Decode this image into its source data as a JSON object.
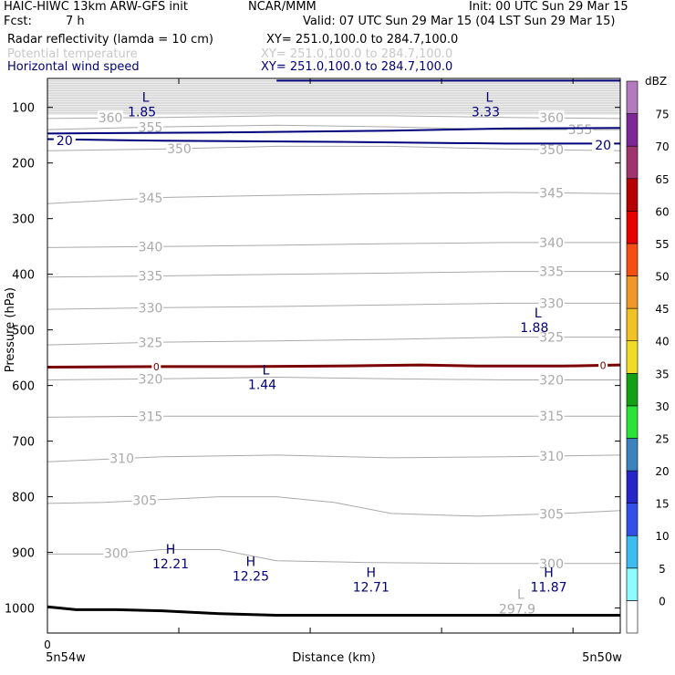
{
  "header": {
    "model": "HAIC-HIWC 13km ARW-GFS init",
    "org": "NCAR/MMM",
    "init": "Init: 00 UTC Sun 29 Mar 15",
    "fcst_label": "Fcst:",
    "fcst_value": "7 h",
    "valid": "Valid: 07 UTC Sun 29 Mar 15 (04 LST Sun 29 Mar 15)",
    "fields": [
      {
        "name": "Radar reflectivity (lamda = 10 cm)",
        "xy": "XY= 251.0,100.0 to 284.7,100.0",
        "color": "#000000"
      },
      {
        "name": "Potential temperature",
        "xy": "XY= 251.0,100.0 to 284.7,100.0",
        "color": "#c8c8c8"
      },
      {
        "name": "Horizontal wind speed",
        "xy": "XY= 251.0,100.0 to 284.7,100.0",
        "color": "#00007a"
      }
    ]
  },
  "colors": {
    "theta": "#aaaaaa",
    "wind": "#00007a",
    "freezing": "#7a0000",
    "terrain": "#000000"
  },
  "chart_data": {
    "type": "line",
    "ylabel": "Pressure (hPa)",
    "xlabel": "Distance (km)",
    "x_left_label": "5n54w",
    "x_right_label": "5n50w",
    "x_zero_label": "0",
    "yticks": [
      100,
      200,
      300,
      400,
      500,
      600,
      700,
      800,
      900,
      1000
    ],
    "ylim": [
      1045,
      48
    ],
    "xlim": [
      0,
      100
    ],
    "theta_contours": [
      {
        "label": "300",
        "points": [
          [
            0,
            903
          ],
          [
            10,
            903
          ],
          [
            20,
            895
          ],
          [
            30,
            895
          ],
          [
            35,
            905
          ],
          [
            40,
            915
          ],
          [
            55,
            918
          ],
          [
            75,
            920
          ],
          [
            90,
            920
          ],
          [
            100,
            920
          ]
        ],
        "labels_at": [
          12,
          88
        ]
      },
      {
        "label": "305",
        "points": [
          [
            0,
            812
          ],
          [
            10,
            810
          ],
          [
            20,
            805
          ],
          [
            30,
            800
          ],
          [
            40,
            800
          ],
          [
            50,
            810
          ],
          [
            60,
            830
          ],
          [
            75,
            835
          ],
          [
            90,
            830
          ],
          [
            100,
            825
          ]
        ],
        "labels_at": [
          17,
          88
        ]
      },
      {
        "label": "310",
        "points": [
          [
            0,
            737
          ],
          [
            20,
            728
          ],
          [
            40,
            725
          ],
          [
            60,
            730
          ],
          [
            80,
            728
          ],
          [
            100,
            725
          ]
        ],
        "labels_at": [
          13,
          88
        ]
      },
      {
        "label": "315",
        "points": [
          [
            0,
            657
          ],
          [
            20,
            655
          ],
          [
            40,
            655
          ],
          [
            60,
            655
          ],
          [
            80,
            655
          ],
          [
            100,
            655
          ]
        ],
        "labels_at": [
          18,
          88
        ]
      },
      {
        "label": "320",
        "points": [
          [
            0,
            590
          ],
          [
            20,
            588
          ],
          [
            40,
            585
          ],
          [
            60,
            588
          ],
          [
            80,
            590
          ],
          [
            100,
            590
          ]
        ],
        "labels_at": [
          18,
          88
        ]
      },
      {
        "label": "325",
        "points": [
          [
            0,
            527
          ],
          [
            20,
            522
          ],
          [
            40,
            520
          ],
          [
            60,
            517
          ],
          [
            80,
            513
          ],
          [
            100,
            513
          ]
        ],
        "labels_at": [
          18,
          88
        ]
      },
      {
        "label": "330",
        "points": [
          [
            0,
            463
          ],
          [
            20,
            460
          ],
          [
            40,
            458
          ],
          [
            60,
            455
          ],
          [
            80,
            452
          ],
          [
            100,
            452
          ]
        ],
        "labels_at": [
          18,
          88
        ]
      },
      {
        "label": "335",
        "points": [
          [
            0,
            405
          ],
          [
            20,
            403
          ],
          [
            40,
            400
          ],
          [
            60,
            398
          ],
          [
            80,
            395
          ],
          [
            100,
            395
          ]
        ],
        "labels_at": [
          18,
          88
        ]
      },
      {
        "label": "340",
        "points": [
          [
            0,
            352
          ],
          [
            20,
            350
          ],
          [
            40,
            348
          ],
          [
            60,
            345
          ],
          [
            80,
            343
          ],
          [
            100,
            343
          ]
        ],
        "labels_at": [
          18,
          88
        ]
      },
      {
        "label": "345",
        "points": [
          [
            0,
            273
          ],
          [
            20,
            262
          ],
          [
            40,
            258
          ],
          [
            60,
            255
          ],
          [
            80,
            253
          ],
          [
            100,
            255
          ]
        ],
        "labels_at": [
          18,
          88
        ]
      },
      {
        "label": "350",
        "points": [
          [
            0,
            178
          ],
          [
            20,
            175
          ],
          [
            40,
            170
          ],
          [
            60,
            170
          ],
          [
            80,
            175
          ],
          [
            100,
            178
          ]
        ],
        "labels_at": [
          23,
          88
        ]
      },
      {
        "label": "355",
        "points": [
          [
            0,
            140
          ],
          [
            20,
            135
          ],
          [
            40,
            132
          ],
          [
            60,
            135
          ],
          [
            80,
            140
          ],
          [
            100,
            140
          ]
        ],
        "labels_at": [
          18,
          93
        ]
      },
      {
        "label": "360",
        "points": [
          [
            0,
            120
          ],
          [
            20,
            118
          ],
          [
            40,
            115
          ],
          [
            60,
            115
          ],
          [
            80,
            118
          ],
          [
            100,
            120
          ]
        ],
        "labels_at": [
          11,
          88
        ]
      }
    ],
    "wind_contours": [
      {
        "label": "20",
        "points": [
          [
            0,
            157
          ],
          [
            20,
            160
          ],
          [
            50,
            162
          ],
          [
            80,
            165
          ],
          [
            100,
            165
          ]
        ],
        "label_positions": [
          [
            3,
            158
          ],
          [
            97,
            166
          ]
        ]
      },
      {
        "label": "",
        "points": [
          [
            0,
            147
          ],
          [
            30,
            145
          ],
          [
            60,
            142
          ],
          [
            80,
            138
          ],
          [
            100,
            137
          ]
        ],
        "label_positions": []
      },
      {
        "label": "",
        "points": [
          [
            40,
            52
          ],
          [
            70,
            52
          ],
          [
            100,
            52
          ]
        ],
        "label_positions": []
      }
    ],
    "freezing_level": {
      "label": "0",
      "points": [
        [
          0,
          567
        ],
        [
          20,
          566
        ],
        [
          35,
          566
        ],
        [
          50,
          565
        ],
        [
          65,
          563
        ],
        [
          75,
          565
        ],
        [
          90,
          565
        ],
        [
          100,
          563
        ]
      ],
      "label_positions": [
        [
          19,
          566
        ],
        [
          97,
          564
        ]
      ]
    },
    "terrain": [
      [
        0,
        998
      ],
      [
        5,
        1003
      ],
      [
        12,
        1003
      ],
      [
        20,
        1005
      ],
      [
        30,
        1010
      ],
      [
        40,
        1013
      ],
      [
        60,
        1013
      ],
      [
        80,
        1013
      ],
      [
        100,
        1013
      ]
    ],
    "extrema": [
      {
        "type": "L",
        "value": "1.85",
        "x": 16.5,
        "p": 96,
        "color": "#00007a"
      },
      {
        "type": "L",
        "value": "3.33",
        "x": 76.5,
        "p": 96,
        "color": "#00007a"
      },
      {
        "type": "L",
        "value": "1.88",
        "x": 85,
        "p": 484,
        "color": "#00007a"
      },
      {
        "type": "L",
        "value": "1.44",
        "x": 37.5,
        "p": 587,
        "color": "#00007a"
      },
      {
        "type": "H",
        "value": "12.21",
        "x": 21.5,
        "p": 909,
        "color": "#00007a"
      },
      {
        "type": "H",
        "value": "12.25",
        "x": 35.5,
        "p": 931,
        "color": "#00007a"
      },
      {
        "type": "H",
        "value": "12.71",
        "x": 56.5,
        "p": 951,
        "color": "#00007a"
      },
      {
        "type": "H",
        "value": "11.87",
        "x": 87.5,
        "p": 951,
        "color": "#00007a"
      },
      {
        "type": "L",
        "value": "297.9",
        "x": 82,
        "p": 990,
        "color": "#aaaaaa"
      }
    ],
    "colorbar": {
      "unit": "dBZ",
      "levels": [
        0,
        5,
        10,
        15,
        20,
        25,
        30,
        35,
        40,
        45,
        50,
        55,
        60,
        65,
        70,
        75
      ],
      "colors": [
        "#ffffff",
        "#8efcfc",
        "#3cbcf0",
        "#3250e8",
        "#2626c8",
        "#3c82be",
        "#2ce238",
        "#14a014",
        "#f0dc28",
        "#f0c228",
        "#f0962a",
        "#f55014",
        "#e60000",
        "#b40000",
        "#a0346e",
        "#7d2896",
        "#b47abe"
      ]
    }
  }
}
